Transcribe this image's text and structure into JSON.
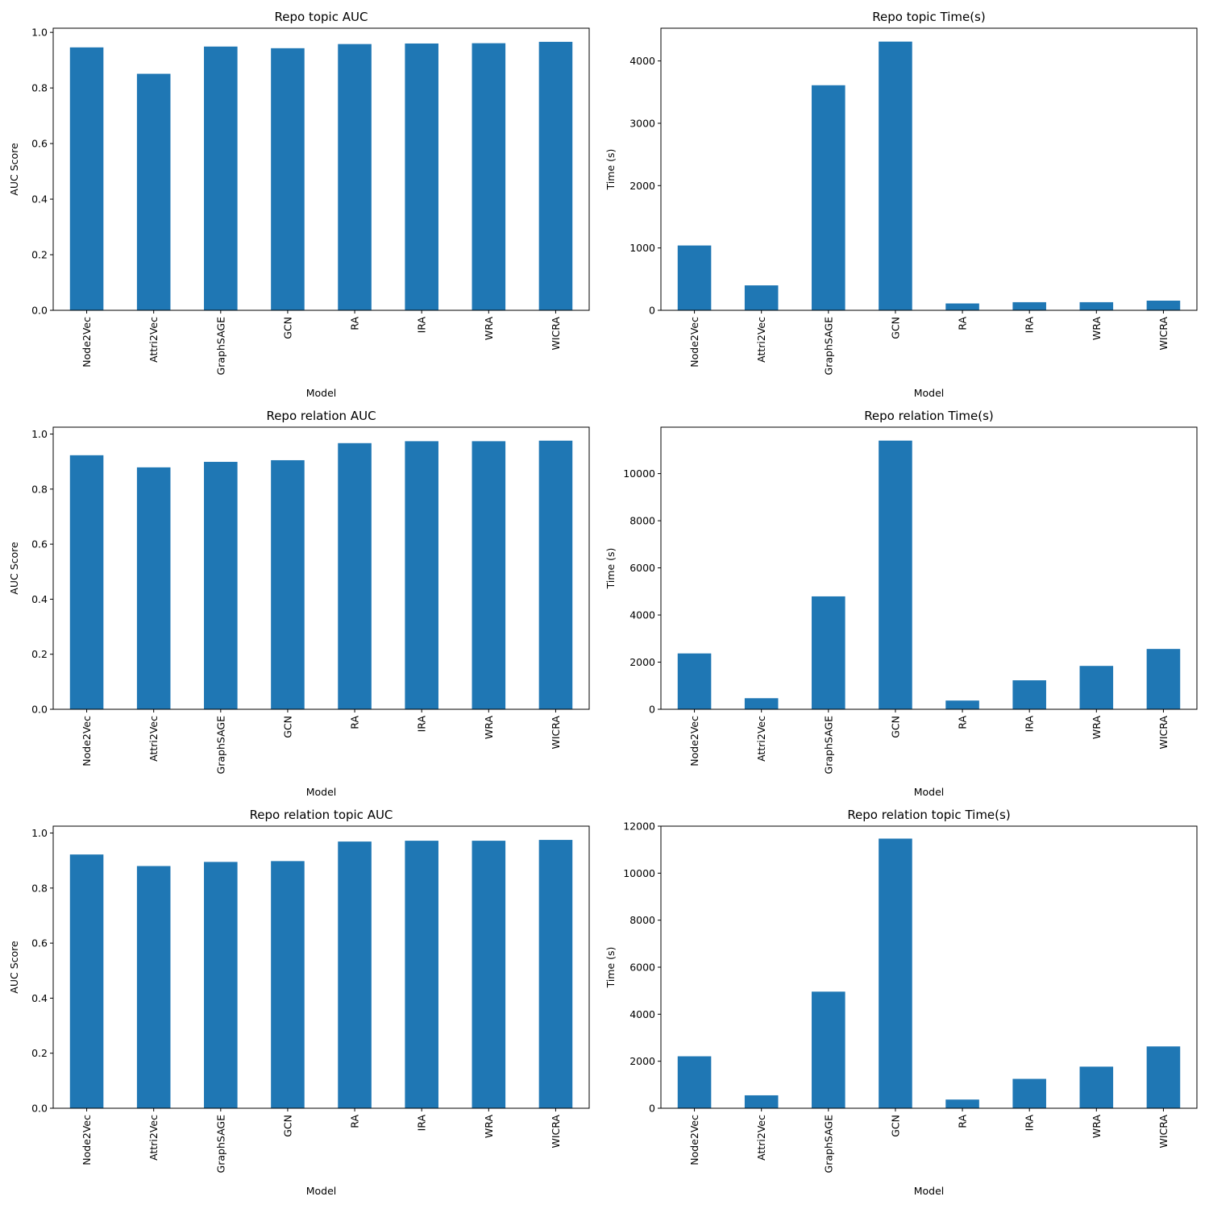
{
  "chart_data": [
    {
      "type": "bar",
      "title": "Repo topic AUC",
      "xlabel": "Model",
      "ylabel": "AUC Score",
      "categories": [
        "Node2Vec",
        "Attri2Vec",
        "GraphSAGE",
        "GCN",
        "RA",
        "IRA",
        "WRA",
        "WICRA"
      ],
      "values": [
        0.946,
        0.851,
        0.949,
        0.943,
        0.958,
        0.96,
        0.961,
        0.966
      ],
      "ylim": [
        0,
        1.015
      ],
      "yticks": [
        0.0,
        0.2,
        0.4,
        0.6,
        0.8,
        1.0
      ],
      "ytick_labels": [
        "0.0",
        "0.2",
        "0.4",
        "0.6",
        "0.8",
        "1.0"
      ],
      "grid": false,
      "color": "#1f77b4"
    },
    {
      "type": "bar",
      "title": "Repo topic Time(s)",
      "xlabel": "Model",
      "ylabel": "Time (s)",
      "categories": [
        "Node2Vec",
        "Attri2Vec",
        "GraphSAGE",
        "GCN",
        "RA",
        "IRA",
        "WRA",
        "WICRA"
      ],
      "values": [
        1040,
        400,
        3610,
        4310,
        110,
        130,
        130,
        155
      ],
      "ylim": [
        0,
        4525
      ],
      "yticks": [
        0,
        1000,
        2000,
        3000,
        4000
      ],
      "ytick_labels": [
        "0",
        "1000",
        "2000",
        "3000",
        "4000"
      ],
      "grid": false,
      "color": "#1f77b4"
    },
    {
      "type": "bar",
      "title": "Repo relation AUC",
      "xlabel": "Model",
      "ylabel": "AUC Score",
      "categories": [
        "Node2Vec",
        "Attri2Vec",
        "GraphSAGE",
        "GCN",
        "RA",
        "IRA",
        "WRA",
        "WICRA"
      ],
      "values": [
        0.923,
        0.879,
        0.899,
        0.905,
        0.967,
        0.974,
        0.974,
        0.976
      ],
      "ylim": [
        0,
        1.025
      ],
      "yticks": [
        0.0,
        0.2,
        0.4,
        0.6,
        0.8,
        1.0
      ],
      "ytick_labels": [
        "0.0",
        "0.2",
        "0.4",
        "0.6",
        "0.8",
        "1.0"
      ],
      "grid": false,
      "color": "#1f77b4"
    },
    {
      "type": "bar",
      "title": "Repo relation Time(s)",
      "xlabel": "Model",
      "ylabel": "Time (s)",
      "categories": [
        "Node2Vec",
        "Attri2Vec",
        "GraphSAGE",
        "GCN",
        "RA",
        "IRA",
        "WRA",
        "WICRA"
      ],
      "values": [
        2370,
        470,
        4790,
        11400,
        370,
        1230,
        1840,
        2560
      ],
      "ylim": [
        0,
        11970
      ],
      "yticks": [
        0,
        2000,
        4000,
        6000,
        8000,
        10000
      ],
      "ytick_labels": [
        "0",
        "2000",
        "4000",
        "6000",
        "8000",
        "10000"
      ],
      "grid": false,
      "color": "#1f77b4"
    },
    {
      "type": "bar",
      "title": "Repo relation topic AUC",
      "xlabel": "Model",
      "ylabel": "AUC Score",
      "categories": [
        "Node2Vec",
        "Attri2Vec",
        "GraphSAGE",
        "GCN",
        "RA",
        "IRA",
        "WRA",
        "WICRA"
      ],
      "values": [
        0.922,
        0.88,
        0.895,
        0.898,
        0.969,
        0.972,
        0.972,
        0.975
      ],
      "ylim": [
        0,
        1.025
      ],
      "yticks": [
        0.0,
        0.2,
        0.4,
        0.6,
        0.8,
        1.0
      ],
      "ytick_labels": [
        "0.0",
        "0.2",
        "0.4",
        "0.6",
        "0.8",
        "1.0"
      ],
      "grid": false,
      "color": "#1f77b4"
    },
    {
      "type": "bar",
      "title": "Repo relation topic Time(s)",
      "xlabel": "Model",
      "ylabel": "Time (s)",
      "categories": [
        "Node2Vec",
        "Attri2Vec",
        "GraphSAGE",
        "GCN",
        "RA",
        "IRA",
        "WRA",
        "WICRA"
      ],
      "values": [
        2210,
        550,
        4960,
        11470,
        370,
        1250,
        1770,
        2630
      ],
      "ylim": [
        0,
        12000
      ],
      "yticks": [
        0,
        2000,
        4000,
        6000,
        8000,
        10000,
        12000
      ],
      "ytick_labels": [
        "0",
        "2000",
        "4000",
        "6000",
        "8000",
        "10000",
        "12000"
      ],
      "grid": false,
      "color": "#1f77b4"
    }
  ]
}
